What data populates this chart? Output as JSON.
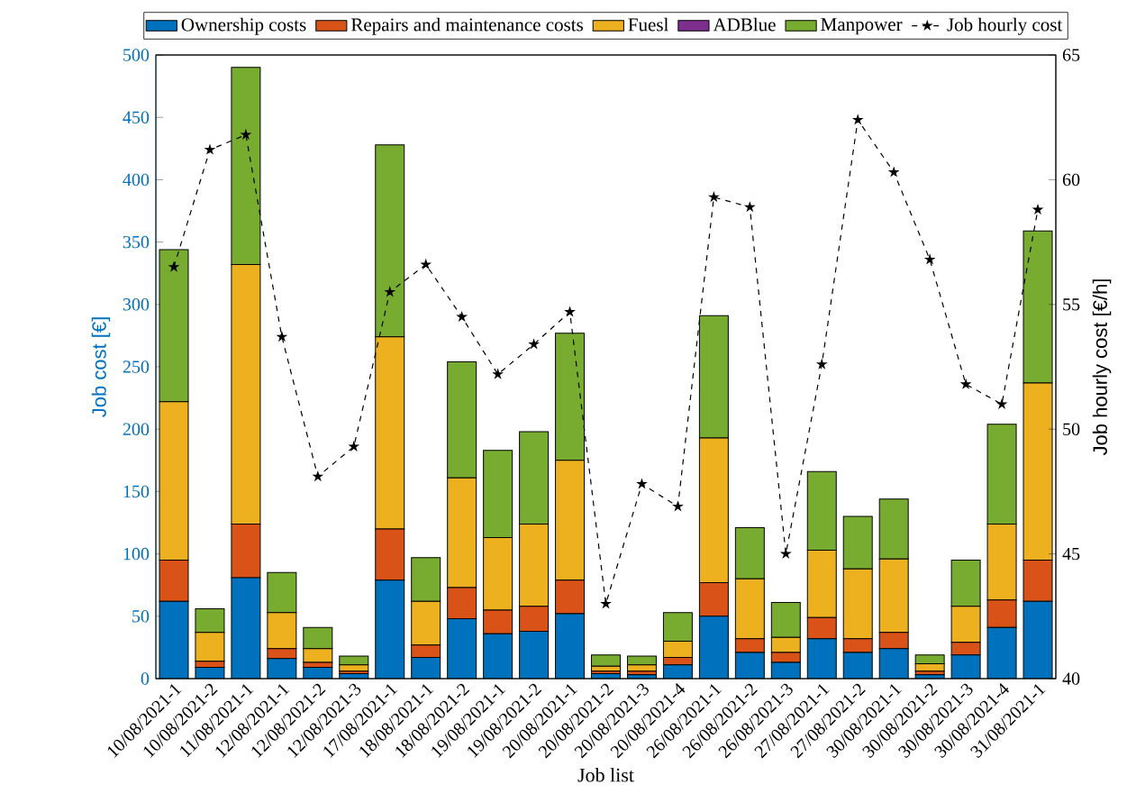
{
  "chart_data": {
    "type": "bar",
    "stacked": true,
    "xlabel": "Job list",
    "ylabel": "Job cost [€]",
    "y2label": "Job hourly cost [€/h]",
    "categories": [
      "10/08/2021-1",
      "10/08/2021-2",
      "11/08/2021-1",
      "12/08/2021-1",
      "12/08/2021-2",
      "12/08/2021-3",
      "17/08/2021-1",
      "18/08/2021-1",
      "18/08/2021-2",
      "19/08/2021-1",
      "19/08/2021-2",
      "20/08/2021-1",
      "20/08/2021-2",
      "20/08/2021-3",
      "20/08/2021-4",
      "26/08/2021-1",
      "26/08/2021-2",
      "26/08/2021-3",
      "27/08/2021-1",
      "27/08/2021-2",
      "30/08/2021-1",
      "30/08/2021-2",
      "30/08/2021-3",
      "30/08/2021-4",
      "31/08/2021-1"
    ],
    "series": [
      {
        "name": "Ownership costs",
        "color": "#0072bd",
        "values": [
          62,
          9,
          81,
          16,
          9,
          4,
          79,
          17,
          48,
          36,
          38,
          52,
          4,
          3,
          11,
          50,
          21,
          13,
          32,
          21,
          24,
          3,
          19,
          41,
          62
        ]
      },
      {
        "name": "Repairs and maintenance costs",
        "color": "#d95319",
        "values": [
          33,
          5,
          43,
          8,
          4,
          2,
          41,
          10,
          25,
          19,
          20,
          27,
          2,
          3,
          6,
          27,
          11,
          8,
          17,
          11,
          13,
          3,
          10,
          22,
          33
        ]
      },
      {
        "name": "Fuesl",
        "color": "#edb120",
        "values": [
          127,
          23,
          208,
          29,
          11,
          5,
          154,
          35,
          88,
          58,
          66,
          96,
          4,
          5,
          13,
          116,
          48,
          12,
          54,
          56,
          59,
          6,
          29,
          61,
          142
        ]
      },
      {
        "name": "ADBlue",
        "color": "#7e2f8e",
        "values": [
          0,
          0,
          0,
          0,
          0,
          0,
          0,
          0,
          0,
          0,
          0,
          0,
          0,
          0,
          0,
          0,
          0,
          0,
          0,
          0,
          0,
          0,
          0,
          0,
          0
        ]
      },
      {
        "name": "Manpower",
        "color": "#77ac30",
        "values": [
          122,
          19,
          158,
          32,
          17,
          7,
          154,
          35,
          93,
          70,
          74,
          102,
          9,
          7,
          23,
          98,
          41,
          28,
          63,
          42,
          48,
          7,
          37,
          80,
          122
        ]
      },
      {
        "name": "Job hourly cost",
        "type": "line",
        "axis": "y2",
        "color": "#000000",
        "values": [
          56.5,
          61.2,
          61.8,
          53.7,
          48.1,
          49.3,
          55.5,
          56.6,
          54.5,
          52.2,
          53.4,
          54.7,
          43.0,
          47.8,
          46.9,
          59.3,
          58.9,
          45.0,
          52.6,
          62.4,
          60.3,
          56.8,
          51.8,
          51.0,
          58.8
        ]
      }
    ],
    "ylim": [
      0,
      500
    ],
    "yticks": [
      0,
      50,
      100,
      150,
      200,
      250,
      300,
      350,
      400,
      450,
      500
    ],
    "y2lim": [
      40,
      65
    ],
    "y2ticks": [
      40,
      45,
      50,
      55,
      60,
      65
    ],
    "legend": "top",
    "marker": "star",
    "line_style": "dashed"
  }
}
